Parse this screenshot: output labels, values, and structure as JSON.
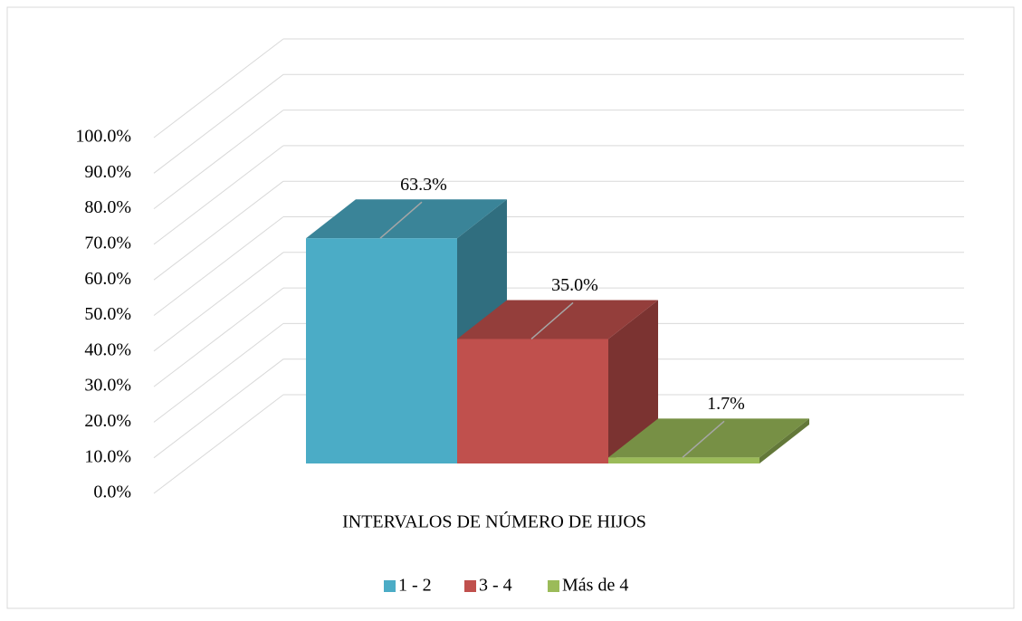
{
  "chart_data": {
    "type": "bar3d",
    "xlabel": "INTERVALOS DE NÚMERO DE HIJOS",
    "series": [
      {
        "name": "1 - 2",
        "color": "#4bacc6",
        "values": [
          63.3
        ],
        "value_labels": [
          "63.3%"
        ]
      },
      {
        "name": "3 - 4",
        "color": "#c0504d",
        "values": [
          35.0
        ],
        "value_labels": [
          "35.0%"
        ]
      },
      {
        "name": "Más de 4",
        "color": "#9bbb59",
        "values": [
          1.7
        ],
        "value_labels": [
          "1.7%"
        ]
      }
    ],
    "ylim": [
      0,
      100
    ],
    "yticks": [
      {
        "value": 0,
        "label": "0.0%"
      },
      {
        "value": 10,
        "label": "10.0%"
      },
      {
        "value": 20,
        "label": "20.0%"
      },
      {
        "value": 30,
        "label": "30.0%"
      },
      {
        "value": 40,
        "label": "40.0%"
      },
      {
        "value": 50,
        "label": "50.0%"
      },
      {
        "value": 60,
        "label": "60.0%"
      },
      {
        "value": 70,
        "label": "70.0%"
      },
      {
        "value": 80,
        "label": "80.0%"
      },
      {
        "value": 90,
        "label": "90.0%"
      },
      {
        "value": 100,
        "label": "100.0%"
      }
    ],
    "grid": true,
    "legend": "bottom"
  }
}
